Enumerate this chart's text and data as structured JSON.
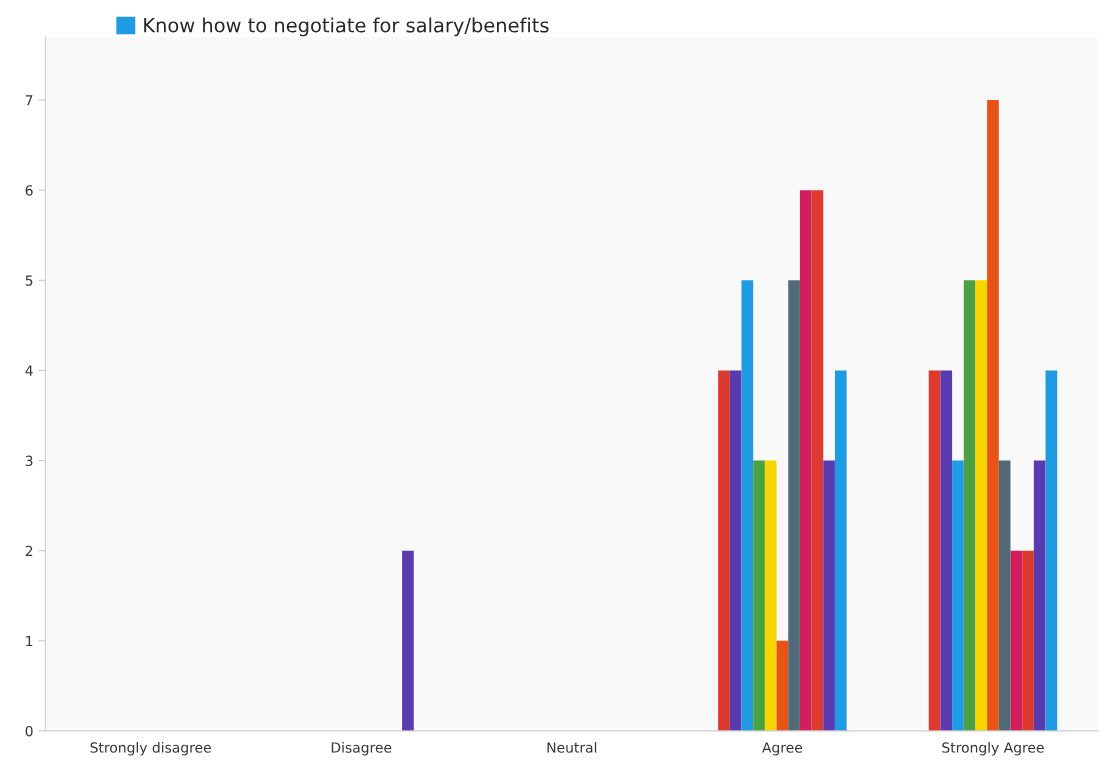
{
  "chart_data": {
    "type": "bar",
    "categories": [
      "Strongly disagree",
      "Disagree",
      "Neutral",
      "Agree",
      "Strongly Agree"
    ],
    "series": [
      {
        "color": "#dc3a2f",
        "values": [
          0,
          0,
          0,
          4,
          4
        ]
      },
      {
        "color": "#5a3ab0",
        "values": [
          0,
          0,
          0,
          4,
          4
        ]
      },
      {
        "color": "#1e9be2",
        "values": [
          0,
          0,
          0,
          5,
          3
        ]
      },
      {
        "color": "#4aa043",
        "values": [
          0,
          0,
          0,
          3,
          5
        ]
      },
      {
        "color": "#f7d600",
        "values": [
          0,
          0,
          0,
          3,
          5
        ]
      },
      {
        "color": "#ea5316",
        "values": [
          0,
          0,
          0,
          1,
          7
        ]
      },
      {
        "color": "#506b75",
        "values": [
          0,
          0,
          0,
          5,
          3
        ]
      },
      {
        "color": "#d11f5e",
        "values": [
          0,
          0,
          0,
          6,
          2
        ]
      },
      {
        "color": "#dc3a2f",
        "values": [
          0,
          0,
          0,
          6,
          2
        ]
      },
      {
        "color": "#5a3ab0",
        "values": [
          0,
          2,
          0,
          3,
          3
        ]
      },
      {
        "name": "Know how to negotiate for salary/benefits",
        "color": "#1e9be2",
        "values": [
          0,
          0,
          0,
          4,
          4
        ]
      }
    ],
    "ylim": [
      0,
      7.7
    ],
    "yticks": [
      0,
      1,
      2,
      3,
      4,
      5,
      6,
      7
    ],
    "grid": false,
    "legend": "top left"
  }
}
